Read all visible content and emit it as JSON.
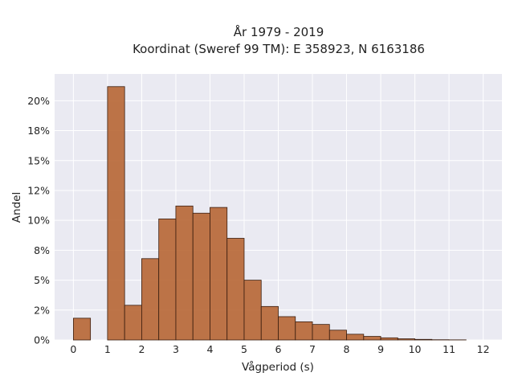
{
  "chart_data": {
    "type": "bar",
    "title": "År 1979 - 2019",
    "subtitle": "Koordinat (Sweref 99 TM): E 358923, N 6163186",
    "xlabel": "Vågperiod (s)",
    "ylabel": "Andel",
    "xlim": [
      -0.55,
      12.55
    ],
    "ylim": [
      0,
      0.2224
    ],
    "x_ticks": [
      {
        "value": 0,
        "label": "0"
      },
      {
        "value": 1,
        "label": "1"
      },
      {
        "value": 2,
        "label": "2"
      },
      {
        "value": 3,
        "label": "3"
      },
      {
        "value": 4,
        "label": "4"
      },
      {
        "value": 5,
        "label": "5"
      },
      {
        "value": 6,
        "label": "6"
      },
      {
        "value": 7,
        "label": "7"
      },
      {
        "value": 8,
        "label": "8"
      },
      {
        "value": 9,
        "label": "9"
      },
      {
        "value": 10,
        "label": "10"
      },
      {
        "value": 11,
        "label": "11"
      },
      {
        "value": 12,
        "label": "12"
      }
    ],
    "y_ticks": [
      {
        "value": 0,
        "label": "0%"
      },
      {
        "value": 0.025,
        "label": "2%"
      },
      {
        "value": 0.05,
        "label": "5%"
      },
      {
        "value": 0.075,
        "label": "8%"
      },
      {
        "value": 0.1,
        "label": "10%"
      },
      {
        "value": 0.125,
        "label": "12%"
      },
      {
        "value": 0.15,
        "label": "15%"
      },
      {
        "value": 0.175,
        "label": "18%"
      },
      {
        "value": 0.2,
        "label": "20%"
      }
    ],
    "bin_width": 0.5,
    "bins": [
      {
        "start": 0.0,
        "value": 0.0182
      },
      {
        "start": 0.5,
        "value": 0.0
      },
      {
        "start": 1.0,
        "value": 0.2118
      },
      {
        "start": 1.5,
        "value": 0.029
      },
      {
        "start": 2.0,
        "value": 0.068
      },
      {
        "start": 2.5,
        "value": 0.1012
      },
      {
        "start": 3.0,
        "value": 0.112
      },
      {
        "start": 3.5,
        "value": 0.106
      },
      {
        "start": 4.0,
        "value": 0.1108
      },
      {
        "start": 4.5,
        "value": 0.085
      },
      {
        "start": 5.0,
        "value": 0.05
      },
      {
        "start": 5.5,
        "value": 0.028
      },
      {
        "start": 6.0,
        "value": 0.0195
      },
      {
        "start": 6.5,
        "value": 0.0152
      },
      {
        "start": 7.0,
        "value": 0.013
      },
      {
        "start": 7.5,
        "value": 0.0082
      },
      {
        "start": 8.0,
        "value": 0.0048
      },
      {
        "start": 8.5,
        "value": 0.003
      },
      {
        "start": 9.0,
        "value": 0.0018
      },
      {
        "start": 9.5,
        "value": 0.001
      },
      {
        "start": 10.0,
        "value": 0.0005
      },
      {
        "start": 10.5,
        "value": 0.0002
      },
      {
        "start": 11.0,
        "value": 0.0001
      }
    ],
    "grid": true,
    "legend": "none",
    "colors": {
      "bar_fill": "#b5622f",
      "bar_stroke": "#3a1e10",
      "plot_background": "#eaeaf2",
      "grid": "#ffffff"
    }
  }
}
